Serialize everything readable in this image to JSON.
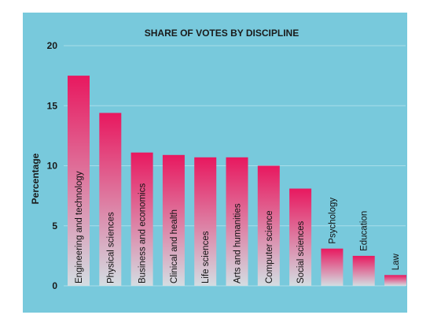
{
  "chart_data": {
    "type": "bar",
    "title": "SHARE OF VOTES BY DISCIPLINE",
    "xlabel": "",
    "ylabel": "Percentage",
    "ylim": [
      0,
      20
    ],
    "yticks": [
      0,
      5,
      10,
      15,
      20
    ],
    "grid": true,
    "categories": [
      "Engineering and technology",
      "Physical sciences",
      "Business and economics",
      "Clinical and health",
      "Life sciences",
      "Arts and humanities",
      "Computer science",
      "Social sciences",
      "Psychology",
      "Education",
      "Law"
    ],
    "values": [
      17.5,
      14.4,
      11.1,
      10.9,
      10.7,
      10.7,
      10.0,
      8.1,
      3.1,
      2.5,
      0.9
    ],
    "colors": {
      "background": "#78c9dc",
      "bar_top": "#e8185f",
      "bar_bottom": "#d3dde2",
      "grid": "#a9dde9"
    }
  }
}
